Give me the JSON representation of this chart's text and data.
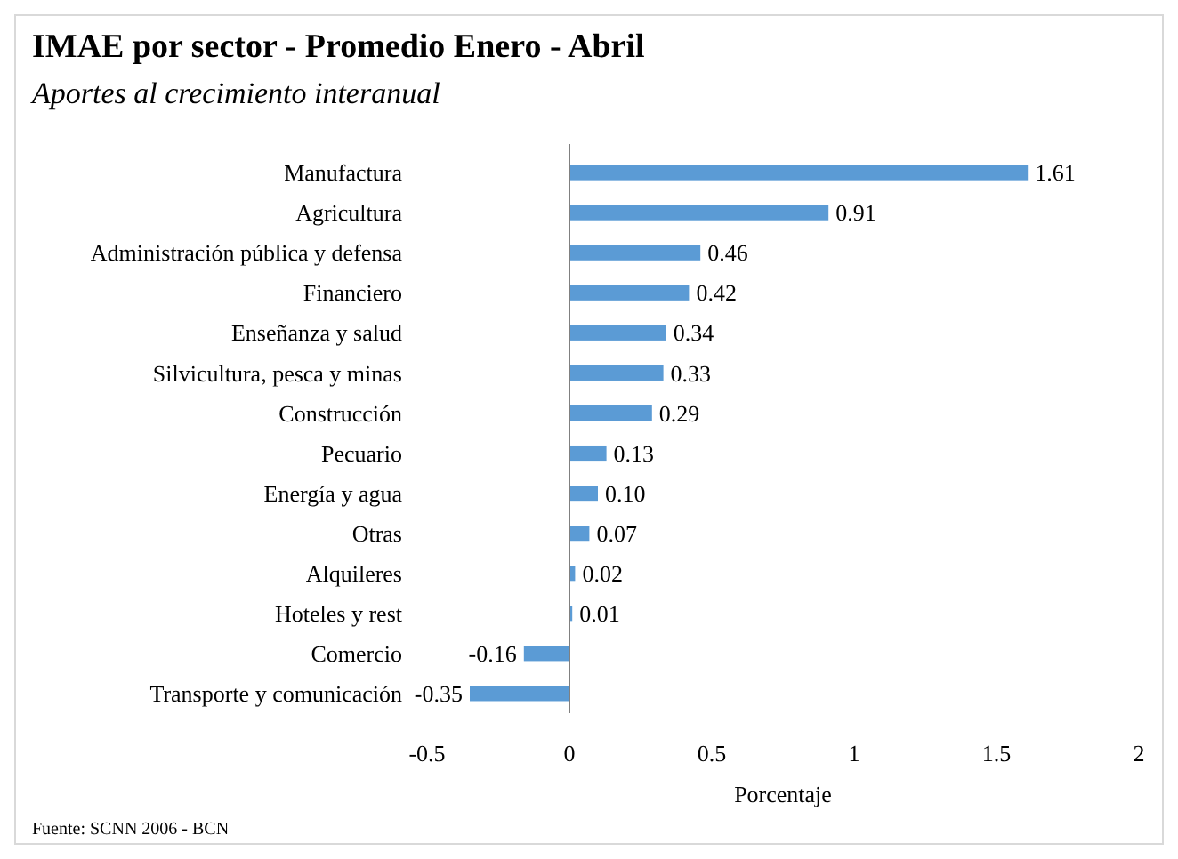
{
  "chart_data": {
    "type": "bar",
    "orientation": "horizontal",
    "title": "IMAE por sector - Promedio Enero - Abril",
    "subtitle": "Aportes al crecimiento interanual",
    "xlabel": "Porcentaje",
    "categories": [
      "Manufactura",
      "Agricultura",
      "Administración pública y defensa",
      "Financiero",
      "Enseñanza y salud",
      "Silvicultura, pesca y minas",
      "Construcción",
      "Pecuario",
      "Energía y agua",
      "Otras",
      "Alquileres",
      "Hoteles y rest",
      "Comercio",
      "Transporte y comunicación"
    ],
    "values": [
      1.61,
      0.91,
      0.46,
      0.42,
      0.34,
      0.33,
      0.29,
      0.13,
      0.1,
      0.07,
      0.02,
      0.01,
      -0.16,
      -0.35
    ],
    "value_labels": [
      "1.61",
      "0.91",
      "0.46",
      "0.42",
      "0.34",
      "0.33",
      "0.29",
      "0.13",
      "0.10",
      "0.07",
      "0.02",
      "0.01",
      "-0.16",
      "-0.35"
    ],
    "color": "#5b9bd5",
    "xlim": [
      -0.5,
      2
    ],
    "xticks": [
      -0.5,
      0,
      0.5,
      1,
      1.5,
      2
    ],
    "annotations": [
      "Fuente: SCNN 2006 - BCN"
    ]
  }
}
